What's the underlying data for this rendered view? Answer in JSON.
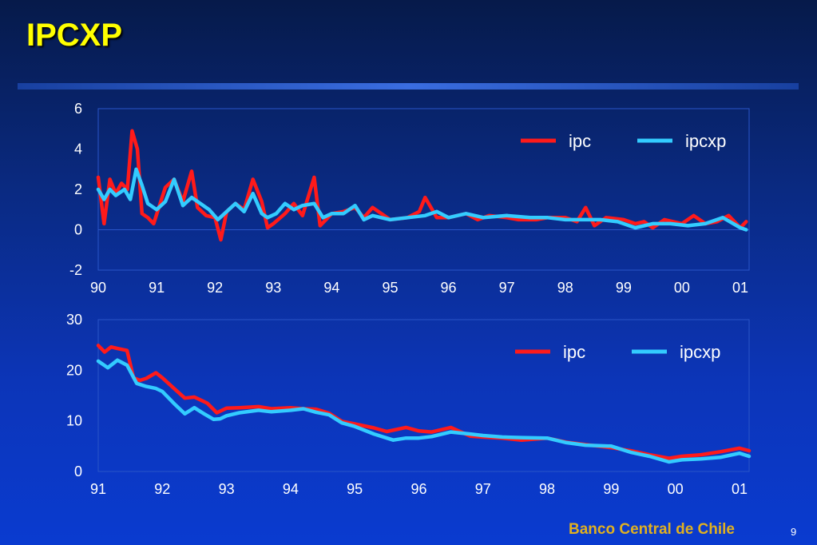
{
  "title": "IPCXP",
  "footer": "Banco Central de Chile",
  "page_number": "9",
  "colors": {
    "ipc": "#ff1a1a",
    "ipcxp": "#33ccff",
    "title": "#ffff00",
    "footer": "#e0b020"
  },
  "chart_data": [
    {
      "type": "line",
      "ylim": [
        -2,
        6
      ],
      "yticks": [
        "6",
        "4",
        "2",
        "0",
        "-2"
      ],
      "yticks_values": [
        6,
        4,
        2,
        0,
        -2
      ],
      "xlim": [
        1990,
        2001.15
      ],
      "xtick_labels": [
        "90",
        "91",
        "92",
        "93",
        "94",
        "95",
        "96",
        "97",
        "98",
        "99",
        "00",
        "01"
      ],
      "xtick_values": [
        1990,
        1991,
        1992,
        1993,
        1994,
        1995,
        1996,
        1997,
        1998,
        1999,
        2000,
        2001
      ],
      "legend": "top-right",
      "series": [
        {
          "name": "ipc",
          "x": [
            1990.0,
            1990.1,
            1990.2,
            1990.3,
            1990.4,
            1990.5,
            1990.58,
            1990.67,
            1990.75,
            1990.85,
            1990.95,
            1991.05,
            1991.15,
            1991.3,
            1991.45,
            1991.6,
            1991.7,
            1991.85,
            1992.0,
            1992.1,
            1992.2,
            1992.35,
            1992.5,
            1992.65,
            1992.8,
            1992.9,
            1993.0,
            1993.2,
            1993.35,
            1993.5,
            1993.7,
            1993.8,
            1993.9,
            1994.0,
            1994.2,
            1994.4,
            1994.55,
            1994.7,
            1995.0,
            1995.3,
            1995.5,
            1995.6,
            1995.8,
            1996.0,
            1996.3,
            1996.5,
            1996.7,
            1997.0,
            1997.2,
            1997.5,
            1997.7,
            1998.0,
            1998.2,
            1998.35,
            1998.5,
            1998.7,
            1999.0,
            1999.2,
            1999.35,
            1999.5,
            1999.7,
            2000.0,
            2000.2,
            2000.4,
            2000.6,
            2000.8,
            2001.0,
            2001.1
          ],
          "y": [
            2.6,
            0.3,
            2.5,
            1.8,
            2.3,
            2.0,
            4.9,
            4.0,
            0.8,
            0.6,
            0.3,
            1.2,
            2.1,
            2.5,
            1.4,
            2.9,
            1.1,
            0.7,
            0.6,
            -0.5,
            0.9,
            1.3,
            1.0,
            2.5,
            1.4,
            0.1,
            0.3,
            0.8,
            1.3,
            0.7,
            2.6,
            0.2,
            0.5,
            0.8,
            0.9,
            1.1,
            0.6,
            1.1,
            0.5,
            0.6,
            0.9,
            1.6,
            0.6,
            0.6,
            0.8,
            0.5,
            0.7,
            0.6,
            0.5,
            0.5,
            0.6,
            0.6,
            0.4,
            1.1,
            0.2,
            0.6,
            0.5,
            0.3,
            0.4,
            0.1,
            0.5,
            0.3,
            0.7,
            0.3,
            0.4,
            0.7,
            0.1,
            0.4
          ]
        },
        {
          "name": "ipcxp",
          "x": [
            1990.0,
            1990.1,
            1990.2,
            1990.3,
            1990.45,
            1990.55,
            1990.65,
            1990.75,
            1990.85,
            1991.0,
            1991.15,
            1991.3,
            1991.45,
            1991.6,
            1991.75,
            1991.9,
            1992.05,
            1992.2,
            1992.35,
            1992.5,
            1992.65,
            1992.8,
            1992.9,
            1993.05,
            1993.2,
            1993.35,
            1993.5,
            1993.7,
            1993.85,
            1994.0,
            1994.2,
            1994.4,
            1994.55,
            1994.7,
            1995.0,
            1995.3,
            1995.6,
            1995.8,
            1996.0,
            1996.3,
            1996.6,
            1997.0,
            1997.4,
            1997.7,
            1998.0,
            1998.3,
            1998.6,
            1998.9,
            1999.2,
            1999.5,
            1999.8,
            2000.1,
            2000.4,
            2000.7,
            2001.0,
            2001.1
          ],
          "y": [
            2.0,
            1.5,
            2.0,
            1.7,
            2.0,
            1.5,
            3.0,
            2.2,
            1.3,
            1.0,
            1.4,
            2.5,
            1.2,
            1.6,
            1.3,
            1.0,
            0.5,
            0.9,
            1.3,
            0.9,
            1.8,
            0.8,
            0.6,
            0.8,
            1.3,
            1.0,
            1.2,
            1.3,
            0.6,
            0.8,
            0.8,
            1.2,
            0.5,
            0.7,
            0.5,
            0.6,
            0.7,
            0.9,
            0.6,
            0.8,
            0.6,
            0.7,
            0.6,
            0.6,
            0.5,
            0.5,
            0.5,
            0.4,
            0.1,
            0.3,
            0.3,
            0.2,
            0.3,
            0.6,
            0.1,
            0.0
          ]
        }
      ]
    },
    {
      "type": "line",
      "ylim": [
        0,
        30
      ],
      "yticks": [
        "30",
        "20",
        "10",
        "0"
      ],
      "yticks_values": [
        30,
        20,
        10,
        0
      ],
      "xlim": [
        1991,
        2001.15
      ],
      "xtick_labels": [
        "91",
        "92",
        "93",
        "94",
        "95",
        "96",
        "97",
        "98",
        "99",
        "00",
        "01"
      ],
      "xtick_values": [
        1991,
        1992,
        1993,
        1994,
        1995,
        1996,
        1997,
        1998,
        1999,
        2000,
        2001
      ],
      "legend": "top-right",
      "series": [
        {
          "name": "ipc",
          "x": [
            1991.0,
            1991.1,
            1991.2,
            1991.3,
            1991.45,
            1991.55,
            1991.65,
            1991.75,
            1991.9,
            1992.0,
            1992.2,
            1992.35,
            1992.5,
            1992.7,
            1992.85,
            1993.0,
            1993.2,
            1993.5,
            1993.7,
            1994.0,
            1994.2,
            1994.4,
            1994.6,
            1994.8,
            1995.0,
            1995.3,
            1995.5,
            1995.8,
            1996.0,
            1996.2,
            1996.5,
            1996.8,
            1997.0,
            1997.3,
            1997.6,
            1998.0,
            1998.3,
            1998.6,
            1999.0,
            1999.3,
            1999.6,
            1999.9,
            2000.1,
            2000.4,
            2000.7,
            2001.0,
            2001.15
          ],
          "y": [
            24.9,
            23.6,
            24.6,
            24.3,
            23.9,
            18.5,
            18.0,
            18.4,
            19.5,
            18.5,
            16.2,
            14.5,
            14.7,
            13.5,
            11.6,
            12.5,
            12.6,
            12.8,
            12.4,
            12.6,
            12.4,
            12.3,
            11.5,
            9.9,
            9.4,
            8.6,
            7.9,
            8.7,
            8.0,
            7.8,
            8.7,
            7.0,
            6.8,
            6.6,
            6.2,
            6.6,
            5.8,
            5.3,
            4.7,
            4.1,
            3.3,
            2.6,
            3.0,
            3.3,
            3.9,
            4.6,
            4.1
          ]
        },
        {
          "name": "ipcxp",
          "x": [
            1991.0,
            1991.15,
            1991.3,
            1991.45,
            1991.6,
            1991.75,
            1991.9,
            1992.0,
            1992.2,
            1992.35,
            1992.5,
            1992.65,
            1992.8,
            1992.9,
            1993.0,
            1993.2,
            1993.5,
            1993.7,
            1994.0,
            1994.2,
            1994.4,
            1994.6,
            1994.8,
            1995.0,
            1995.3,
            1995.6,
            1995.8,
            1996.0,
            1996.2,
            1996.5,
            1996.8,
            1997.0,
            1997.3,
            1997.6,
            1998.0,
            1998.3,
            1998.6,
            1999.0,
            1999.3,
            1999.6,
            1999.9,
            2000.1,
            2000.4,
            2000.7,
            2001.0,
            2001.15
          ],
          "y": [
            21.8,
            20.5,
            22.0,
            21.0,
            17.4,
            16.8,
            16.4,
            15.8,
            13.2,
            11.4,
            12.6,
            11.4,
            10.3,
            10.4,
            11.0,
            11.6,
            12.1,
            11.8,
            12.1,
            12.4,
            11.7,
            11.2,
            9.6,
            8.9,
            7.4,
            6.2,
            6.6,
            6.6,
            6.9,
            7.8,
            7.4,
            7.1,
            6.8,
            6.7,
            6.6,
            5.7,
            5.2,
            5.0,
            3.8,
            3.0,
            1.9,
            2.3,
            2.5,
            2.8,
            3.6,
            3.0
          ]
        }
      ]
    }
  ]
}
